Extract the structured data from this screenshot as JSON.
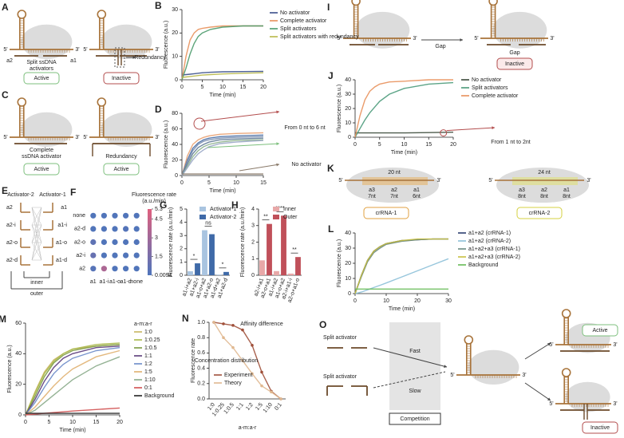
{
  "diagrams": {
    "ends": [
      "5'",
      "3'"
    ],
    "A": {
      "label": "A",
      "a2": "a2",
      "split": [
        "Split ssDNA",
        "activators"
      ],
      "a1": "a1",
      "redundancy": "Redundancy",
      "status": [
        "Active",
        "Inactive"
      ]
    },
    "C": {
      "label": "C",
      "complete": [
        "Complete",
        "ssDNA activator"
      ],
      "redundancy": "Redundancy",
      "status": [
        "Active",
        "Active"
      ]
    },
    "E": {
      "label": "E",
      "activators": [
        "Activator-2",
        "Activator-1"
      ],
      "left": [
        "a2",
        "a2-i",
        "a2-o",
        "a2-d"
      ],
      "right": [
        "a1",
        "a1-i",
        "a1-o",
        "a1-d"
      ],
      "inner": "inner",
      "outer": "outer"
    },
    "I": {
      "label": "I",
      "gap": [
        "Gap",
        "Gap"
      ],
      "status": "Inactive"
    },
    "K": {
      "label": "K",
      "lengths": [
        "20 nt",
        "24 nt"
      ],
      "segments_1": [
        "a3",
        "a2",
        "a1"
      ],
      "nt_1": [
        "7nt",
        "7nt",
        "6nt"
      ],
      "segments_2": [
        "a3",
        "a2",
        "a1"
      ],
      "nt_2": [
        "8nt",
        "8nt",
        "8nt"
      ],
      "crrna": [
        "crRNA-1",
        "crRNA-2"
      ]
    },
    "O": {
      "label": "O",
      "activators": [
        "Split activator",
        "Split activator"
      ],
      "speeds": [
        "Fast",
        "Slow"
      ],
      "competition": "Competition",
      "status": [
        "Active",
        "Inactive"
      ]
    }
  },
  "chart_data": [
    {
      "type": "line",
      "label": "B",
      "xlabel": "Time (min)",
      "ylabel": "Fluorescence (a.u.)",
      "x": [
        0,
        1,
        2,
        3,
        4,
        5,
        7,
        10,
        15,
        20
      ],
      "xlim": [
        0,
        20
      ],
      "xticks": [
        0,
        5,
        10,
        15,
        20
      ],
      "ylim": [
        0,
        30
      ],
      "yticks": [
        0,
        10,
        20,
        30
      ],
      "legend": "right",
      "series": [
        {
          "name": "No activator",
          "color": "#3a4f8a",
          "values": [
            2,
            2.2,
            2.4,
            2.6,
            2.8,
            3,
            3.2,
            3.4,
            3.5,
            3.6
          ]
        },
        {
          "name": "Complete activator",
          "color": "#e8905a",
          "values": [
            0,
            10,
            17,
            20,
            21.5,
            22,
            22.5,
            23,
            23,
            23
          ]
        },
        {
          "name": "Split activators",
          "color": "#4a9a6a",
          "values": [
            0,
            5,
            11,
            15.5,
            18.5,
            20,
            21.5,
            22.5,
            23,
            23
          ]
        },
        {
          "name": "Split activators with redundancy",
          "color": "#b8b848",
          "values": [
            1,
            1.2,
            1.4,
            1.6,
            1.8,
            2,
            2.2,
            2.5,
            2.8,
            3
          ]
        }
      ]
    },
    {
      "type": "line",
      "label": "D",
      "xlabel": "Time (min)",
      "ylabel": "Fluorescence (a.u.)",
      "x": [
        0,
        1,
        2,
        3,
        4,
        5,
        7,
        10,
        15
      ],
      "xlim": [
        0,
        15
      ],
      "xticks": [
        0,
        5,
        10,
        15
      ],
      "ylim": [
        0,
        80
      ],
      "yticks": [
        0,
        20,
        40,
        60,
        80
      ],
      "series": [
        {
          "color": "#e8a070",
          "values": [
            0,
            25,
            40,
            46,
            49,
            51,
            53,
            54,
            55
          ]
        },
        {
          "color": "#4a6fa5",
          "values": [
            0,
            20,
            35,
            42,
            46,
            48,
            50,
            51,
            52
          ]
        },
        {
          "color": "#7a8fb0",
          "values": [
            0,
            18,
            32,
            40,
            44,
            46,
            48,
            49,
            50
          ]
        },
        {
          "color": "#5f7a96",
          "values": [
            0,
            15,
            28,
            36,
            40,
            43,
            46,
            47,
            48
          ]
        },
        {
          "color": "#8cb08c",
          "values": [
            0,
            12,
            24,
            32,
            37,
            40,
            43,
            45,
            46
          ]
        },
        {
          "color": "#9aa7c7",
          "values": [
            0,
            10,
            20,
            28,
            33,
            37,
            41,
            43,
            45
          ]
        },
        {
          "color": "#8a7a6a",
          "values": [
            2,
            2,
            2,
            2,
            2,
            2,
            2,
            2,
            2
          ]
        }
      ],
      "annotations": [
        "From 0 nt to 6 nt",
        "No activator"
      ]
    },
    {
      "type": "bar",
      "label": "G",
      "ylabel": "Fluorescence rate (a.u./min)",
      "categories": [
        "a1-i+a2",
        "a1+a2-i",
        "a1-o+a2",
        "a1+a2-o",
        "a1-d+a2",
        "a1+a2-d"
      ],
      "ylim": [
        0,
        5
      ],
      "yticks": [
        0,
        1,
        2,
        3,
        4,
        5
      ],
      "legend": "upper right",
      "series": [
        {
          "name": "Activator-1",
          "color": "#a9c4e0",
          "values": [
            0.3,
            null,
            3.4,
            null,
            0.05,
            null
          ]
        },
        {
          "name": "Activator-2",
          "color": "#3f6aa8",
          "values": [
            null,
            0.9,
            null,
            3.1,
            null,
            0.25
          ]
        }
      ],
      "annotations": [
        "*",
        "ns",
        "*"
      ]
    },
    {
      "type": "bar",
      "label": "H",
      "ylabel": "Fluorescence rate (a.u./min)",
      "categories": [
        "a2-i+a1",
        "a2-o+a1",
        "a1-i+a2",
        "a1-o+a2",
        "a2-i+a1-i",
        "a2-o+a1-o"
      ],
      "ylim": [
        0,
        4
      ],
      "yticks": [
        0,
        1,
        2,
        3,
        4
      ],
      "legend": "upper right",
      "series": [
        {
          "name": "Inner",
          "color": "#e8a8a8",
          "values": [
            0.9,
            null,
            0.25,
            null,
            0.1,
            null
          ]
        },
        {
          "name": "Outer",
          "color": "#c0505a",
          "values": [
            null,
            3.1,
            null,
            3.6,
            null,
            1.1
          ]
        }
      ],
      "annotations": [
        "**",
        "****",
        "**"
      ]
    },
    {
      "type": "dot_matrix",
      "label": "F",
      "rows": [
        "none",
        "a2-d",
        "a2-o",
        "a2-i",
        "a2"
      ],
      "columns": [
        "a1",
        "a1-i",
        "a1-o",
        "a1-d",
        "none"
      ],
      "values": [
        [
          0.1,
          0.1,
          0.1,
          0.1,
          0.1
        ],
        [
          0.1,
          0.1,
          0.1,
          0.2,
          0.1
        ],
        [
          0.6,
          0.1,
          0.1,
          0.1,
          0.1
        ],
        [
          0.9,
          0.1,
          0.1,
          0.1,
          0.1
        ],
        [
          0.3,
          3.4,
          0.1,
          0.1,
          0.1
        ]
      ],
      "colorbar_title": [
        "Fluorescence rate",
        "(a.u./min)"
      ],
      "clim": [
        0.0094,
        5.3
      ],
      "cticks": [
        5.3,
        4.5,
        3,
        1.5,
        0.0094
      ],
      "colors": [
        "#4f75bb",
        "#e0607e"
      ]
    },
    {
      "type": "line",
      "label": "J",
      "xlabel": "Time (min)",
      "ylabel": "Fluorescence (a.u.)",
      "x": [
        0,
        1,
        2,
        3,
        4,
        5,
        7,
        10,
        15,
        20
      ],
      "xlim": [
        0,
        20
      ],
      "xticks": [
        0,
        5,
        10,
        15,
        20
      ],
      "ylim": [
        0,
        40
      ],
      "yticks": [
        0,
        10,
        20,
        30,
        40
      ],
      "legend": "right",
      "series": [
        {
          "name": "No activator",
          "color": "#3b4a3a",
          "values": [
            3,
            3,
            3,
            3,
            3,
            3,
            3,
            3,
            3.2,
            3.5
          ]
        },
        {
          "name": "Split activators",
          "color": "#4a9a7a",
          "values": [
            0,
            6,
            12,
            17,
            21,
            25,
            30,
            34,
            37,
            38
          ]
        },
        {
          "name": "Complete activator",
          "color": "#e8905a",
          "values": [
            0,
            15,
            26,
            32,
            35,
            37,
            38.5,
            39,
            40,
            40
          ]
        }
      ],
      "annotations": [
        "From 1 nt to 2nt"
      ]
    },
    {
      "type": "line",
      "label": "L",
      "xlabel": "Time (min)",
      "ylabel": "Fluorescence (a.u.)",
      "x": [
        0,
        2,
        4,
        6,
        8,
        10,
        15,
        20,
        25,
        30
      ],
      "xlim": [
        0,
        30
      ],
      "xticks": [
        0,
        10,
        20,
        30
      ],
      "ylim": [
        0,
        40
      ],
      "yticks": [
        0,
        10,
        20,
        30,
        40
      ],
      "legend": "right",
      "series": [
        {
          "name": "a1+a2 (crRNA-1)",
          "color": "#2c3e70",
          "values": [
            0,
            12,
            22,
            28,
            31,
            33,
            35,
            35.5,
            36,
            36
          ]
        },
        {
          "name": "a1+a2 (crRNA-2)",
          "color": "#8cc0d8",
          "values": [
            0,
            1,
            2.5,
            4,
            5.5,
            7,
            11,
            15,
            19,
            23
          ]
        },
        {
          "name": "a1+a2+a3 (crRNA-1)",
          "color": "#6a8a80",
          "values": [
            0,
            11,
            21,
            27,
            30,
            32.5,
            34.5,
            35.5,
            36,
            36
          ]
        },
        {
          "name": "a1+a2+a3 (crRNA-2)",
          "color": "#c8c040",
          "values": [
            0,
            12,
            22,
            28,
            31,
            33,
            35,
            36,
            36,
            36
          ]
        },
        {
          "name": "Background",
          "color": "#66bb55",
          "values": [
            3,
            3,
            3,
            3,
            3,
            3,
            3,
            3,
            3,
            3
          ]
        }
      ]
    },
    {
      "type": "line",
      "label": "M",
      "xlabel": "Time (min)",
      "ylabel": "Fluorescence (a.u.)",
      "x": [
        0,
        2,
        4,
        6,
        8,
        10,
        15,
        20
      ],
      "xlim": [
        0,
        20
      ],
      "xticks": [
        0,
        5,
        10,
        15,
        20
      ],
      "ylim": [
        0,
        60
      ],
      "yticks": [
        0,
        20,
        40,
        60
      ],
      "legend": "right",
      "legend_title": "a-m:a-r",
      "series": [
        {
          "name": "1:0",
          "color": "#c8b560",
          "values": [
            0,
            15,
            28,
            36,
            40,
            43,
            45,
            46
          ]
        },
        {
          "name": "1:0.25",
          "color": "#a8b848",
          "values": [
            0,
            14,
            27,
            35,
            40,
            43,
            46,
            47
          ]
        },
        {
          "name": "1:0.5",
          "color": "#7a9a40",
          "values": [
            0,
            12,
            25,
            34,
            39,
            42,
            45,
            46
          ]
        },
        {
          "name": "1:1",
          "color": "#5a3a7a",
          "values": [
            0,
            10,
            22,
            31,
            37,
            40,
            44,
            45
          ]
        },
        {
          "name": "1:2",
          "color": "#6a8ac8",
          "values": [
            0,
            8,
            18,
            27,
            33,
            37,
            42,
            44
          ]
        },
        {
          "name": "1:5",
          "color": "#e0b070",
          "values": [
            0,
            5,
            12,
            19,
            25,
            30,
            38,
            42
          ]
        },
        {
          "name": "1:10",
          "color": "#88aa88",
          "values": [
            0,
            3,
            8,
            13,
            18,
            23,
            32,
            38
          ]
        },
        {
          "name": "0:1",
          "color": "#d05050",
          "values": [
            0,
            0.5,
            1,
            1.5,
            2,
            2.5,
            3.5,
            4.5
          ]
        },
        {
          "name": "Background",
          "color": "#222222",
          "values": [
            1,
            1,
            1,
            1,
            1,
            1,
            1,
            1
          ]
        }
      ]
    },
    {
      "type": "line",
      "label": "N",
      "xlabel": "a-m:a-r",
      "ylabel": "Fluorescence rate",
      "categories": [
        "1:0",
        "1:0.25",
        "1:0.5",
        "1:1",
        "1:2",
        "1:5",
        "1:10",
        "0:1"
      ],
      "ylim": [
        0,
        1
      ],
      "yticks": [
        {
          "value": 0,
          "label": "0.0"
        },
        0.2,
        0.4,
        0.6,
        0.8,
        {
          "value": 1,
          "label": "1.0"
        }
      ],
      "legend": "lower left",
      "series": [
        {
          "name": "Experiment",
          "color": "#a0503a",
          "values": [
            1,
            0.98,
            0.96,
            0.9,
            0.7,
            0.35,
            0.1,
            0
          ]
        },
        {
          "name": "Theory",
          "color": "#e0b890",
          "values": [
            1,
            0.8,
            0.67,
            0.5,
            0.33,
            0.17,
            0.09,
            0
          ]
        }
      ],
      "annotations": [
        "Affinity difference",
        "Concentration distribution"
      ]
    }
  ]
}
